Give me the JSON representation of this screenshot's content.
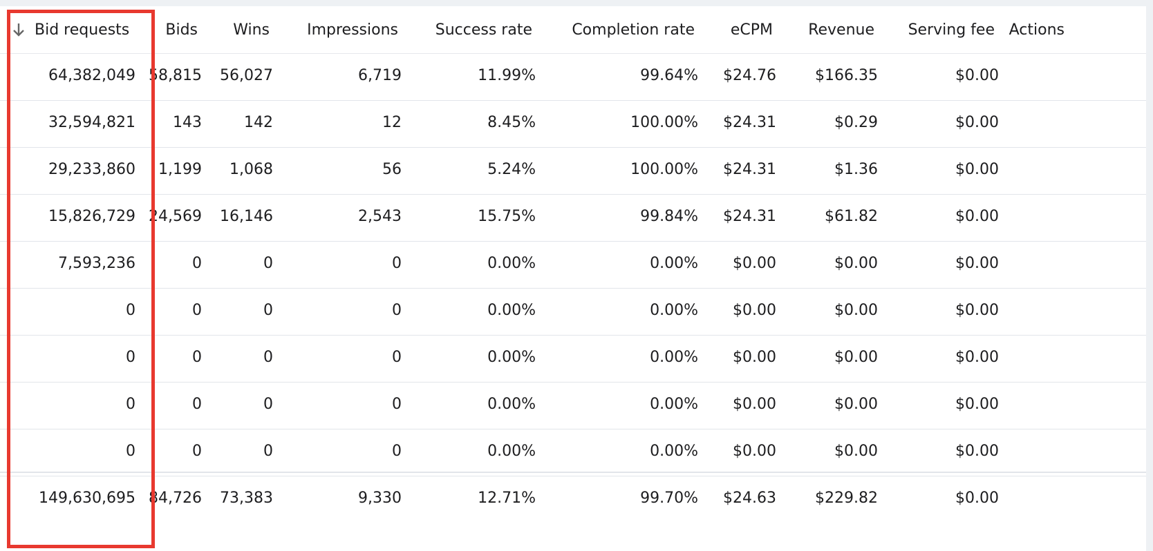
{
  "columns": {
    "bid_requests": "Bid requests",
    "bids": "Bids",
    "wins": "Wins",
    "impressions": "Impressions",
    "success_rate": "Success rate",
    "completion_rate": "Completion rate",
    "ecpm": "eCPM",
    "revenue": "Revenue",
    "serving_fee": "Serving fee",
    "actions": "Actions"
  },
  "sort": {
    "column": "bid_requests",
    "direction": "descending",
    "icon": "arrow-down-icon"
  },
  "rows": [
    {
      "bid_requests": "64,382,049",
      "bids": "58,815",
      "wins": "56,027",
      "impressions": "6,719",
      "success_rate": "11.99%",
      "completion_rate": "99.64%",
      "ecpm": "$24.76",
      "revenue": "$166.35",
      "serving_fee": "$0.00"
    },
    {
      "bid_requests": "32,594,821",
      "bids": "143",
      "wins": "142",
      "impressions": "12",
      "success_rate": "8.45%",
      "completion_rate": "100.00%",
      "ecpm": "$24.31",
      "revenue": "$0.29",
      "serving_fee": "$0.00"
    },
    {
      "bid_requests": "29,233,860",
      "bids": "1,199",
      "wins": "1,068",
      "impressions": "56",
      "success_rate": "5.24%",
      "completion_rate": "100.00%",
      "ecpm": "$24.31",
      "revenue": "$1.36",
      "serving_fee": "$0.00"
    },
    {
      "bid_requests": "15,826,729",
      "bids": "24,569",
      "wins": "16,146",
      "impressions": "2,543",
      "success_rate": "15.75%",
      "completion_rate": "99.84%",
      "ecpm": "$24.31",
      "revenue": "$61.82",
      "serving_fee": "$0.00"
    },
    {
      "bid_requests": "7,593,236",
      "bids": "0",
      "wins": "0",
      "impressions": "0",
      "success_rate": "0.00%",
      "completion_rate": "0.00%",
      "ecpm": "$0.00",
      "revenue": "$0.00",
      "serving_fee": "$0.00"
    },
    {
      "bid_requests": "0",
      "bids": "0",
      "wins": "0",
      "impressions": "0",
      "success_rate": "0.00%",
      "completion_rate": "0.00%",
      "ecpm": "$0.00",
      "revenue": "$0.00",
      "serving_fee": "$0.00"
    },
    {
      "bid_requests": "0",
      "bids": "0",
      "wins": "0",
      "impressions": "0",
      "success_rate": "0.00%",
      "completion_rate": "0.00%",
      "ecpm": "$0.00",
      "revenue": "$0.00",
      "serving_fee": "$0.00"
    },
    {
      "bid_requests": "0",
      "bids": "0",
      "wins": "0",
      "impressions": "0",
      "success_rate": "0.00%",
      "completion_rate": "0.00%",
      "ecpm": "$0.00",
      "revenue": "$0.00",
      "serving_fee": "$0.00"
    },
    {
      "bid_requests": "0",
      "bids": "0",
      "wins": "0",
      "impressions": "0",
      "success_rate": "0.00%",
      "completion_rate": "0.00%",
      "ecpm": "$0.00",
      "revenue": "$0.00",
      "serving_fee": "$0.00"
    }
  ],
  "totals": {
    "bid_requests": "149,630,695",
    "bids": "84,726",
    "wins": "73,383",
    "impressions": "9,330",
    "success_rate": "12.71%",
    "completion_rate": "99.70%",
    "ecpm": "$24.63",
    "revenue": "$229.82",
    "serving_fee": "$0.00"
  },
  "colors": {
    "highlight_border": "#e8392f",
    "row_divider": "#e2e5ea",
    "background": "#eef1f4"
  }
}
